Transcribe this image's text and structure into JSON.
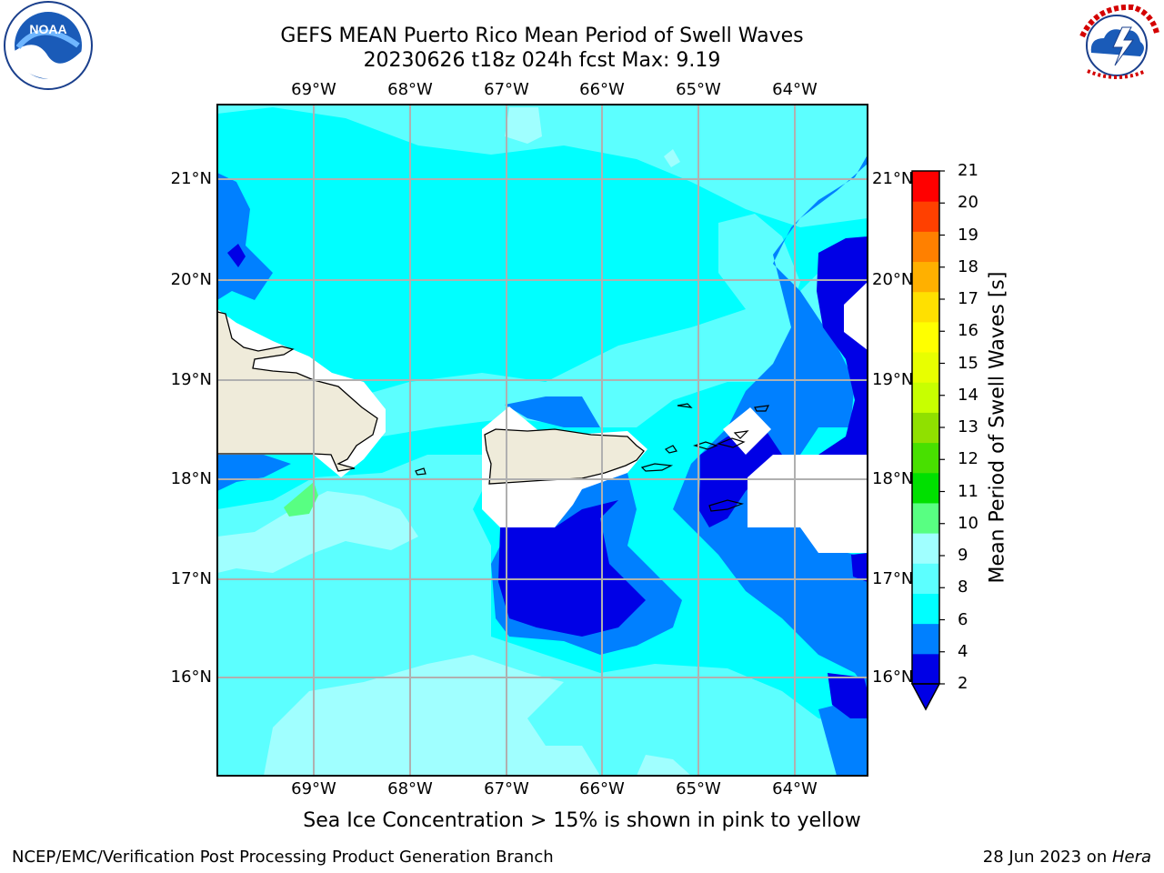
{
  "title": {
    "line1": "GEFS MEAN Puerto Rico Mean Period of Swell Waves",
    "line2": "20230626 t18z 024h fcst   Max: 9.19"
  },
  "map": {
    "lon_labels": [
      "69°W",
      "68°W",
      "67°W",
      "66°W",
      "65°W",
      "64°W"
    ],
    "lat_labels": [
      "21°N",
      "20°N",
      "19°N",
      "18°N",
      "17°N",
      "16°N"
    ],
    "land_color": "#efebda",
    "gridline_color": "#b0b0b0"
  },
  "colorbar": {
    "label": "Mean Period of Swell Waves [s]",
    "ticks": [
      "21",
      "20",
      "19",
      "18",
      "17",
      "16",
      "15",
      "14",
      "13",
      "12",
      "11",
      "10",
      "9",
      "8",
      "6",
      "4",
      "2"
    ],
    "colors": [
      "#0000e6",
      "#0080ff",
      "#00ffff",
      "#5cffff",
      "#a0ffff",
      "#58ff82",
      "#00e000",
      "#48e000",
      "#90e000",
      "#c8ff00",
      "#e8ff00",
      "#ffff00",
      "#ffe000",
      "#ffb000",
      "#ff8000",
      "#ff4000",
      "#ff0000"
    ]
  },
  "note": "Sea Ice Concentration > 15% is shown in pink to yellow",
  "footer": {
    "left": "NCEP/EMC/Verification Post Processing Product Generation Branch",
    "date": "28 Jun 2023 on ",
    "machine": "Hera"
  },
  "logos": {
    "noaa_text": "NOAA",
    "nws_text": "NATIONAL WEATHER SERVICE"
  }
}
